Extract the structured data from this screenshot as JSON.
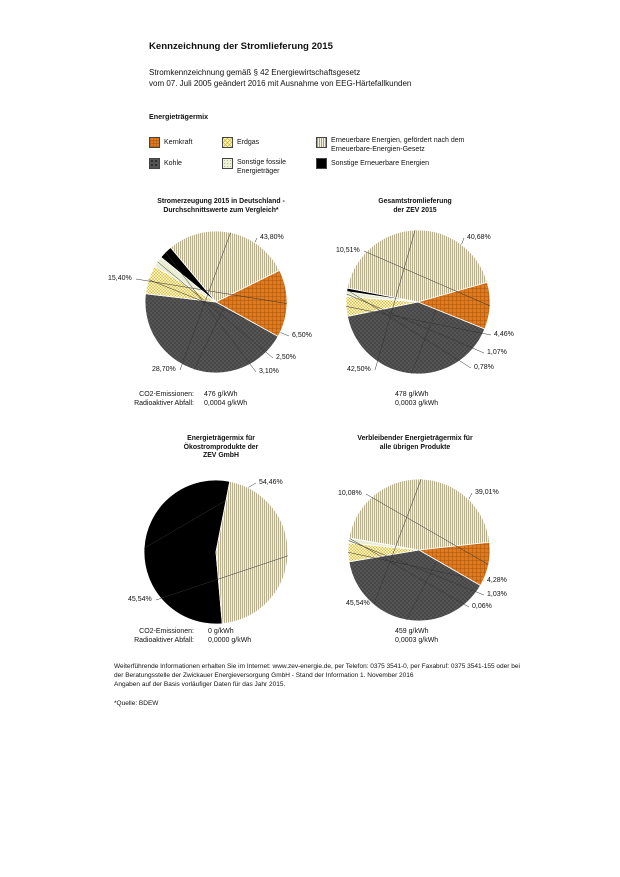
{
  "header": {
    "title": "Kennzeichnung der Stromlieferung 2015",
    "subtitle_line1": "Stromkennzeichnung gemäß § 42 Energiewirtschaftsgesetz",
    "subtitle_line2": "vom 07. Juli 2005 geändert 2016 mit Ausnahme von EEG-Härtefallkunden",
    "section": "Energieträgermix"
  },
  "legend": [
    {
      "key": "kernkraft",
      "label": "Kernkraft",
      "color": "#e07a1c"
    },
    {
      "key": "erdgas",
      "label": "Erdgas",
      "color": "#f3e27a"
    },
    {
      "key": "eeg",
      "label": "Erneuerbare Energien, gefördert nach dem Erneuerbare-Energien-Gesetz",
      "color": "#ebe8d2"
    },
    {
      "key": "kohle",
      "label": "Kohle",
      "color": "#4d4d4d"
    },
    {
      "key": "fossil",
      "label": "Sonstige fossile Energieträger",
      "color": "#e4ebc9"
    },
    {
      "key": "ee_sonst",
      "label": "Sonstige Erneuerbare Energien",
      "color": "#000000"
    }
  ],
  "emissions_labels": {
    "co2": "CO2-Emissionen:",
    "waste": "Radioaktiver Abfall:"
  },
  "chart_data": [
    {
      "type": "pie",
      "title_lines": [
        "Stromerzeugung 2015 in Deutschland -",
        "Durchschnittswerte zum Vergleich*"
      ],
      "slices": [
        {
          "key": "kohle",
          "value": 43.8,
          "label": "43,80%"
        },
        {
          "key": "erdgas",
          "value": 6.5,
          "label": "6,50%"
        },
        {
          "key": "fossil",
          "value": 2.5,
          "label": "2,50%"
        },
        {
          "key": "ee_sonst",
          "value": 3.1,
          "label": "3,10%"
        },
        {
          "key": "eeg",
          "value": 28.7,
          "label": "28,70%"
        },
        {
          "key": "kernkraft",
          "value": 15.4,
          "label": "15,40%"
        }
      ],
      "co2": "476 g/kWh",
      "waste": "0,0004 g/kWh"
    },
    {
      "type": "pie",
      "title_lines": [
        "Gesamtstromlieferung",
        "der ZEV 2015"
      ],
      "slices": [
        {
          "key": "kohle",
          "value": 40.68,
          "label": "40,68%"
        },
        {
          "key": "erdgas",
          "value": 4.46,
          "label": "4,46%"
        },
        {
          "key": "fossil",
          "value": 1.07,
          "label": "1,07%"
        },
        {
          "key": "ee_sonst",
          "value": 0.78,
          "label": "0,78%"
        },
        {
          "key": "eeg",
          "value": 42.5,
          "label": "42,50%"
        },
        {
          "key": "kernkraft",
          "value": 10.51,
          "label": "10,51%"
        }
      ],
      "co2": "478 g/kWh",
      "waste": "0,0003 g/kWh"
    },
    {
      "type": "pie",
      "title_lines": [
        "Energieträgermix für",
        "Ökostromprodukte der",
        "ZEV GmbH"
      ],
      "slices": [
        {
          "key": "ee_sonst",
          "value": 54.46,
          "label": "54,46%"
        },
        {
          "key": "eeg",
          "value": 45.54,
          "label": "45,54%"
        }
      ],
      "co2": "0 g/kWh",
      "waste": "0,0000 g/kWh"
    },
    {
      "type": "pie",
      "title_lines": [
        "Verbleibender Energieträgermix für",
        "alle übrigen Produkte"
      ],
      "slices": [
        {
          "key": "kohle",
          "value": 39.01,
          "label": "39,01%"
        },
        {
          "key": "erdgas",
          "value": 4.28,
          "label": "4,28%"
        },
        {
          "key": "fossil",
          "value": 1.03,
          "label": "1,03%"
        },
        {
          "key": "ee_sonst",
          "value": 0.06,
          "label": "0,06%"
        },
        {
          "key": "eeg",
          "value": 45.54,
          "label": "45,54%"
        },
        {
          "key": "kernkraft",
          "value": 10.08,
          "label": "10,08%"
        }
      ],
      "co2": "459 g/kWh",
      "waste": "0,0003 g/kWh"
    }
  ],
  "footer": {
    "line1": "Weiterführende Informationen erhalten Sie im Internet: www.zev-energie.de, per Telefon: 0375 3541-0, per Faxabruf: 0375 3541-155 oder bei",
    "line2": "der Beratungsstelle der Zwickauer Energieversorgung GmbH - Stand der Information 1. November 2016",
    "line3": "Angaben auf der Basis vorläufiger Daten für das Jahr 2015.",
    "source": "*Quelle: BDEW"
  }
}
